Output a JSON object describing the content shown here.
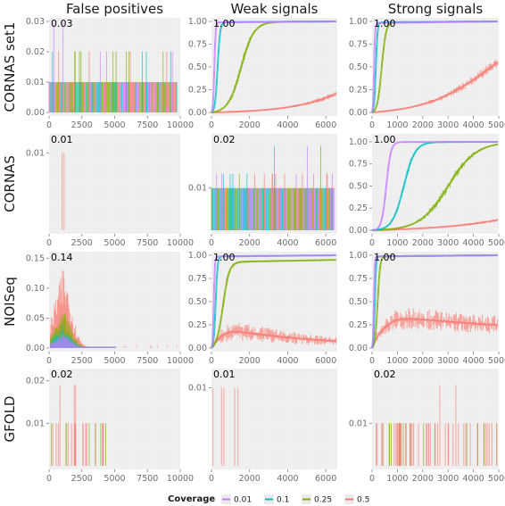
{
  "figure": {
    "columns": [
      "False positives",
      "Weak signals",
      "Strong signals"
    ],
    "rows": [
      "CORNAS set1",
      "CORNAS",
      "NOISeq",
      "GFOLD"
    ]
  },
  "legend": {
    "title": "Coverage",
    "entries": [
      {
        "label": "0.01",
        "color": "#c77cff"
      },
      {
        "label": "0.1",
        "color": "#00bfc4"
      },
      {
        "label": "0.25",
        "color": "#7cae00"
      },
      {
        "label": "0.5",
        "color": "#f8766d"
      }
    ]
  },
  "chart_data": [
    {
      "id": "p00",
      "row": "CORNAS set1",
      "column": "False positives",
      "type": "bar",
      "max_label": "0.03",
      "xlim": [
        0,
        10000
      ],
      "ylim": [
        0,
        0.03
      ],
      "xticks": [
        "0",
        "2500",
        "5000",
        "7500",
        "10000"
      ],
      "yticks": [
        "0.00",
        "0.01",
        "0.02",
        "0.03"
      ],
      "description_values": {
        "baseline_level": 0.01,
        "spike_level": 0.02,
        "max": 0.03
      }
    },
    {
      "id": "p01",
      "row": "CORNAS set1",
      "column": "Weak signals",
      "type": "line",
      "max_label": "1.00",
      "xlim": [
        0,
        6600
      ],
      "ylim": [
        0,
        1
      ],
      "xticks": [
        "0",
        "2000",
        "4000",
        "6000"
      ],
      "yticks": [
        "0.00",
        "0.25",
        "0.50",
        "0.75",
        "1.00"
      ],
      "series": [
        {
          "name": "0.01",
          "midpoint": 150,
          "slope": 0.03,
          "top": 1.0
        },
        {
          "name": "0.1",
          "midpoint": 320,
          "slope": 0.015,
          "top": 1.0
        },
        {
          "name": "0.25",
          "midpoint": 1550,
          "slope": 0.003,
          "top": 1.0
        },
        {
          "name": "0.5",
          "midpoint": 9000,
          "slope": 0.00055,
          "top": 1.0
        }
      ]
    },
    {
      "id": "p02",
      "row": "CORNAS set1",
      "column": "Strong signals",
      "type": "line",
      "max_label": "1.00",
      "xlim": [
        0,
        5000
      ],
      "ylim": [
        0,
        1
      ],
      "xticks": [
        "0",
        "1000",
        "2000",
        "3000",
        "4000",
        "5000"
      ],
      "yticks": [
        "0.00",
        "0.25",
        "0.50",
        "0.75",
        "1.00"
      ],
      "series": [
        {
          "name": "0.01",
          "midpoint": 80,
          "slope": 0.05,
          "top": 1.0
        },
        {
          "name": "0.1",
          "midpoint": 150,
          "slope": 0.03,
          "top": 1.0
        },
        {
          "name": "0.25",
          "midpoint": 380,
          "slope": 0.012,
          "top": 1.0
        },
        {
          "name": "0.5",
          "midpoint": 4700,
          "slope": 0.0008,
          "top": 1.0
        }
      ]
    },
    {
      "id": "p10",
      "row": "CORNAS",
      "column": "False positives",
      "type": "bar",
      "max_label": "0.01",
      "xlim": [
        0,
        10000
      ],
      "ylim": [
        0,
        0.012
      ],
      "xticks": [
        "0",
        "2500",
        "5000",
        "7500",
        "10000"
      ],
      "yticks": [
        "0.01"
      ],
      "description_values": {
        "spike_x": [
          1000,
          1150
        ],
        "spike_level": 0.01
      }
    },
    {
      "id": "p11",
      "row": "CORNAS",
      "column": "Weak signals",
      "type": "bar",
      "max_label": "0.02",
      "xlim": [
        0,
        6600
      ],
      "ylim": [
        0,
        0.022
      ],
      "xticks": [
        "0",
        "2000",
        "4000",
        "6000"
      ],
      "yticks": [
        "0.01"
      ],
      "description_values": {
        "baseline_level": 0.01,
        "max": 0.02
      }
    },
    {
      "id": "p12",
      "row": "CORNAS",
      "column": "Strong signals",
      "type": "line",
      "max_label": "1.00",
      "xlim": [
        0,
        5000
      ],
      "ylim": [
        0,
        1.05
      ],
      "xticks": [
        "0",
        "1000",
        "2000",
        "3000",
        "4000",
        "5000"
      ],
      "yticks": [
        "0.00",
        "0.25",
        "0.50",
        "0.75",
        "1.00"
      ],
      "series": [
        {
          "name": "0.01",
          "midpoint": 560,
          "slope": 0.011,
          "top": 1.0
        },
        {
          "name": "0.1",
          "midpoint": 1250,
          "slope": 0.0045,
          "top": 1.0
        },
        {
          "name": "0.25",
          "midpoint": 3000,
          "slope": 0.0018,
          "top": 1.0
        },
        {
          "name": "0.5",
          "midpoint": 9000,
          "slope": 0.0005,
          "top": 1.0
        }
      ]
    },
    {
      "id": "p20",
      "row": "NOISeq",
      "column": "False positives",
      "type": "bar",
      "max_label": "0.14",
      "xlim": [
        0,
        10000
      ],
      "ylim": [
        0,
        0.155
      ],
      "xticks": [
        "0",
        "2500",
        "5000",
        "7500",
        "10000"
      ],
      "yticks": [
        "0.00",
        "0.05",
        "0.10",
        "0.15"
      ],
      "description_values": {
        "peak_x": 1000,
        "peak": 0.14,
        "tail_end_x": 5000
      }
    },
    {
      "id": "p21",
      "row": "NOISeq",
      "column": "Weak signals",
      "type": "line",
      "max_label": "1.00",
      "xlim": [
        0,
        6600
      ],
      "ylim": [
        0,
        1
      ],
      "xticks": [
        "0",
        "2000",
        "4000",
        "6000"
      ],
      "yticks": [
        "0.00",
        "0.25",
        "0.50",
        "0.75",
        "1.00"
      ],
      "series": [
        {
          "name": "0.01",
          "midpoint": 120,
          "slope": 0.035,
          "top": 1.0
        },
        {
          "name": "0.1",
          "midpoint": 220,
          "slope": 0.02,
          "top": 1.0
        },
        {
          "name": "0.25",
          "midpoint": 600,
          "slope": 0.006,
          "top": 0.95
        },
        {
          "name": "0.5",
          "type": "hump",
          "peak_x": 1000,
          "peak": 0.2,
          "end": 0.02
        }
      ]
    },
    {
      "id": "p22",
      "row": "NOISeq",
      "column": "Strong signals",
      "type": "line",
      "max_label": "1.00",
      "xlim": [
        0,
        5000
      ],
      "ylim": [
        0,
        1
      ],
      "xticks": [
        "0",
        "1000",
        "2000",
        "3000",
        "4000",
        "5000"
      ],
      "yticks": [
        "0.00",
        "0.25",
        "0.50",
        "0.75",
        "1.00"
      ],
      "series": [
        {
          "name": "0.01",
          "midpoint": 70,
          "slope": 0.06,
          "top": 1.0
        },
        {
          "name": "0.1",
          "midpoint": 110,
          "slope": 0.04,
          "top": 1.0
        },
        {
          "name": "0.25",
          "midpoint": 220,
          "slope": 0.02,
          "top": 1.0
        },
        {
          "name": "0.5",
          "type": "hump",
          "peak_x": 1000,
          "peak": 0.35,
          "end": 0.2
        }
      ]
    },
    {
      "id": "p30",
      "row": "GFOLD",
      "column": "False positives",
      "type": "bar",
      "max_label": "0.02",
      "xlim": [
        0,
        10000
      ],
      "ylim": [
        0,
        0.022
      ],
      "xticks": [
        "0",
        "2500",
        "5000",
        "7500",
        "10000"
      ],
      "yticks": [
        "0.01",
        "0.02"
      ],
      "description_values": {
        "spike_level": 0.01,
        "max": 0.02
      }
    },
    {
      "id": "p31",
      "row": "GFOLD",
      "column": "Weak signals",
      "type": "bar",
      "max_label": "0.01",
      "xlim": [
        0,
        6600
      ],
      "ylim": [
        0,
        0.012
      ],
      "xticks": [
        "0",
        "2000",
        "4000",
        "6000"
      ],
      "yticks": [
        "0.01"
      ],
      "description_values": {
        "spike_level": 0.01
      }
    },
    {
      "id": "p32",
      "row": "GFOLD",
      "column": "Strong signals",
      "type": "bar",
      "max_label": "0.02",
      "xlim": [
        0,
        5000
      ],
      "ylim": [
        0,
        0.022
      ],
      "xticks": [
        "0",
        "1000",
        "2000",
        "3000",
        "4000",
        "5000"
      ],
      "yticks": [
        "0.01"
      ],
      "description_values": {
        "spike_level": 0.01,
        "max": 0.02
      }
    }
  ]
}
